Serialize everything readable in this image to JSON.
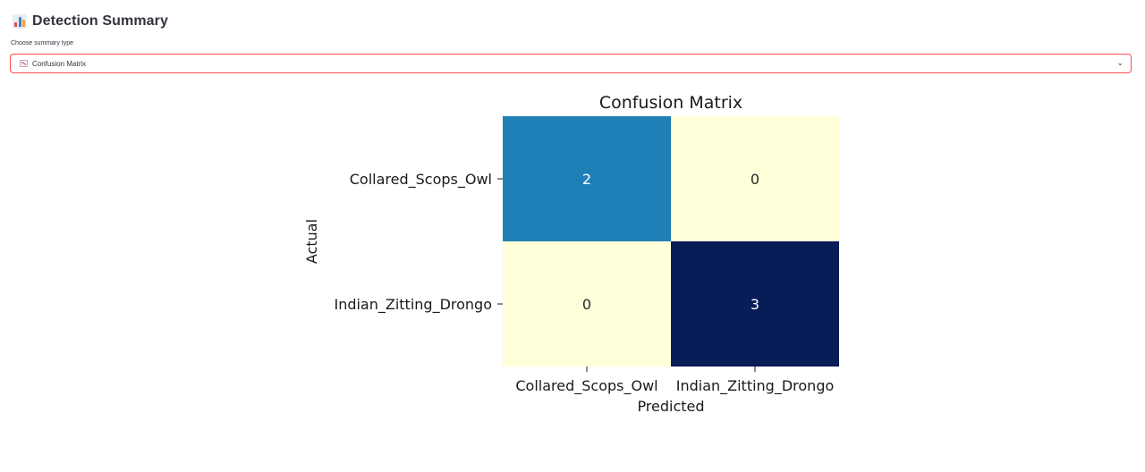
{
  "header": {
    "title": "Detection Summary",
    "icon": "bar-chart-icon"
  },
  "summary_select": {
    "label": "Choose summary type",
    "selected": "Confusion Matrix",
    "icon": "chart-down-icon",
    "accent_color": "#ff4b4b"
  },
  "chart_data": {
    "type": "heatmap",
    "title": "Confusion Matrix",
    "xlabel": "Predicted",
    "ylabel": "Actual",
    "x_categories": [
      "Collared_Scops_Owl",
      "Indian_Zitting_Drongo"
    ],
    "y_categories": [
      "Collared_Scops_Owl",
      "Indian_Zitting_Drongo"
    ],
    "matrix": [
      [
        2,
        0
      ],
      [
        0,
        3
      ]
    ],
    "colormap": "YlGnBu",
    "grid": false,
    "colorbar": false
  }
}
